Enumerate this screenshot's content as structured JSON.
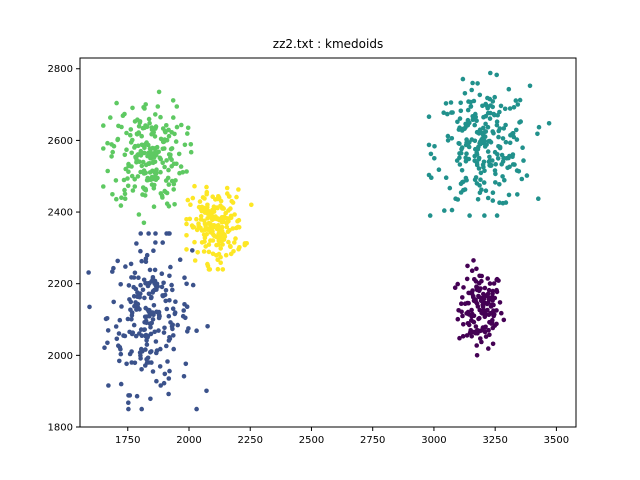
{
  "chart_data": {
    "type": "scatter",
    "title": "zz2.txt : kmedoids",
    "xlabel": "",
    "ylabel": "",
    "xlim": [
      1555,
      3580
    ],
    "ylim": [
      1800,
      2830
    ],
    "xticks": [
      1750,
      2000,
      2250,
      2500,
      2750,
      3000,
      3250,
      3500
    ],
    "yticks": [
      1800,
      2000,
      2200,
      2400,
      2600,
      2800
    ],
    "grid": false,
    "legend": "none",
    "clusters": [
      {
        "color": "#440154",
        "center": [
          3190,
          2130
        ],
        "spread": [
          45,
          55
        ],
        "count": 150,
        "range_x": [
          3080,
          3320
        ],
        "range_y": [
          2000,
          2265
        ]
      },
      {
        "color": "#3b528b",
        "center": [
          1840,
          2110
        ],
        "spread": [
          85,
          105
        ],
        "count": 230,
        "range_x": [
          1590,
          2100
        ],
        "range_y": [
          1850,
          2340
        ]
      },
      {
        "color": "#21918c",
        "center": [
          3200,
          2580
        ],
        "spread": [
          95,
          85
        ],
        "count": 250,
        "range_x": [
          2980,
          3470
        ],
        "range_y": [
          2390,
          2805
        ]
      },
      {
        "color": "#5ec962",
        "center": [
          1830,
          2560
        ],
        "spread": [
          75,
          75
        ],
        "count": 220,
        "range_x": [
          1650,
          2030
        ],
        "range_y": [
          2370,
          2805
        ]
      },
      {
        "color": "#fde725",
        "center": [
          2110,
          2360
        ],
        "spread": [
          55,
          50
        ],
        "count": 200,
        "range_x": [
          1990,
          2260
        ],
        "range_y": [
          2240,
          2520
        ]
      }
    ]
  }
}
